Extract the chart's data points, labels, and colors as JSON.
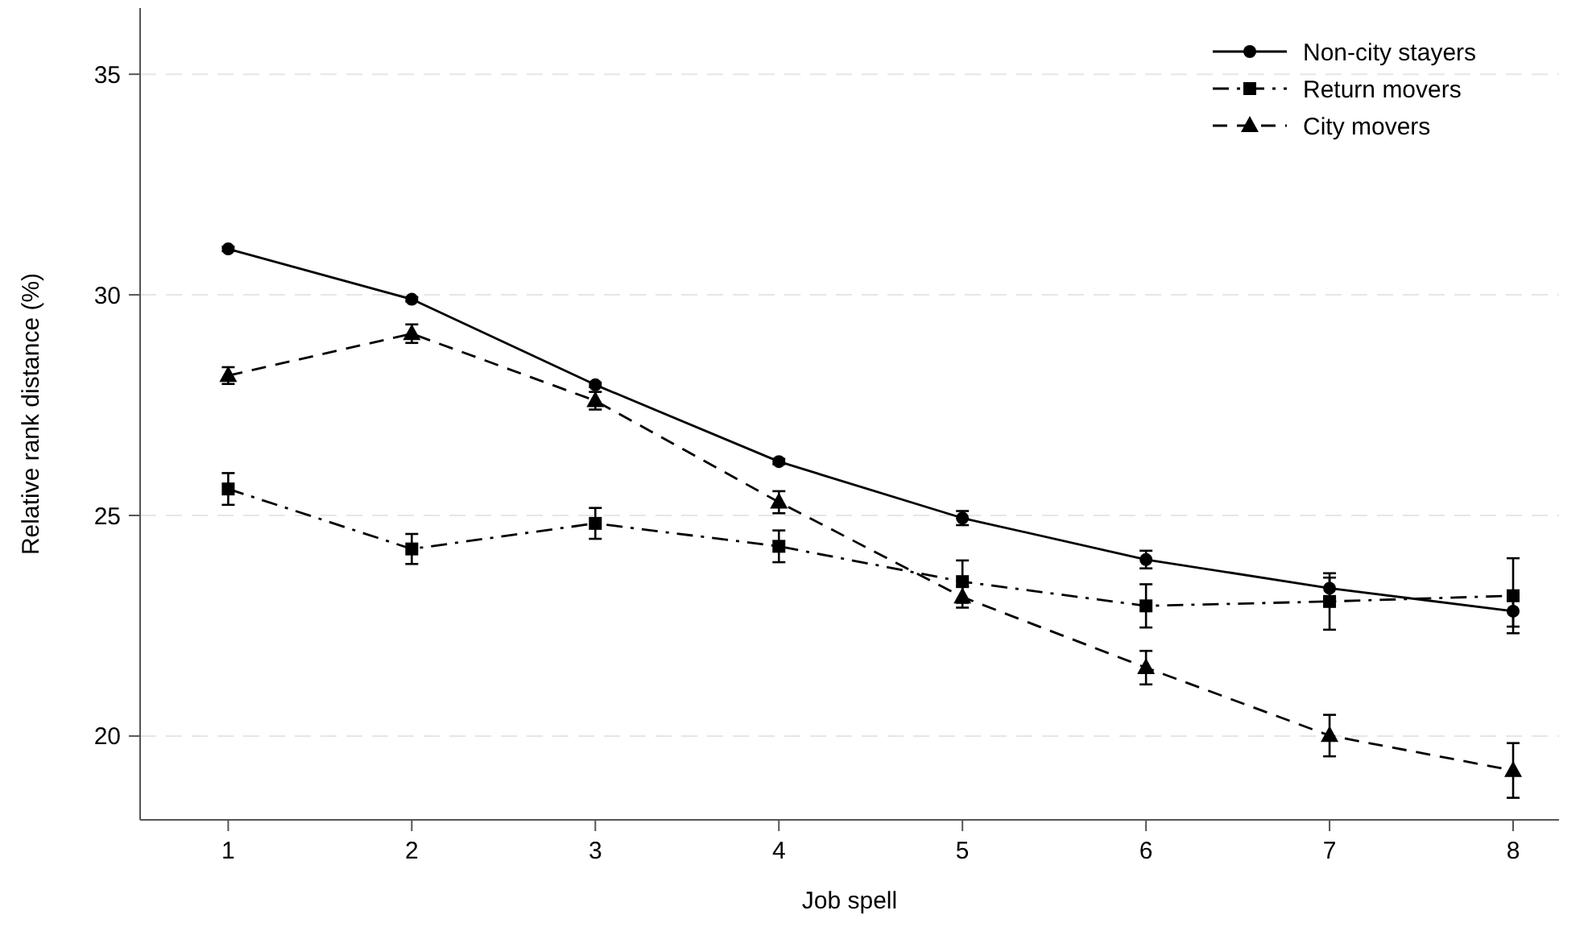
{
  "chart_data": {
    "type": "line",
    "xlabel": "Job spell",
    "ylabel": "Relative rank distance (%)",
    "x": [
      1,
      2,
      3,
      4,
      5,
      6,
      7,
      8
    ],
    "xlim": [
      0.52,
      8.25
    ],
    "xticks": [
      1,
      2,
      3,
      4,
      5,
      6,
      7,
      8
    ],
    "ylim": [
      18.1,
      36.5
    ],
    "yticks": [
      20,
      25,
      30,
      35
    ],
    "grid": "y",
    "legend": "top right",
    "series": [
      {
        "name": "Non-city stayers",
        "color": "#000000",
        "marker": "circle",
        "line_style": "solid",
        "values": [
          31.04,
          29.9,
          27.96,
          26.22,
          24.94,
          24.0,
          23.35,
          22.83
        ],
        "errors": [
          0.05,
          0.05,
          0.05,
          0.06,
          0.16,
          0.2,
          0.24,
          0.35
        ]
      },
      {
        "name": "Return movers",
        "color": "#000000",
        "marker": "square",
        "line_style": "dashdot",
        "values": [
          25.6,
          24.24,
          24.82,
          24.3,
          23.5,
          22.95,
          23.05,
          23.18
        ],
        "errors": [
          0.36,
          0.34,
          0.35,
          0.36,
          0.48,
          0.49,
          0.64,
          0.85
        ]
      },
      {
        "name": "City movers",
        "color": "#000000",
        "marker": "triangle",
        "line_style": "dashed",
        "values": [
          28.17,
          29.12,
          27.6,
          25.3,
          23.15,
          21.55,
          20.01,
          19.22
        ],
        "errors": [
          0.19,
          0.21,
          0.2,
          0.25,
          0.24,
          0.38,
          0.47,
          0.62
        ]
      }
    ]
  }
}
